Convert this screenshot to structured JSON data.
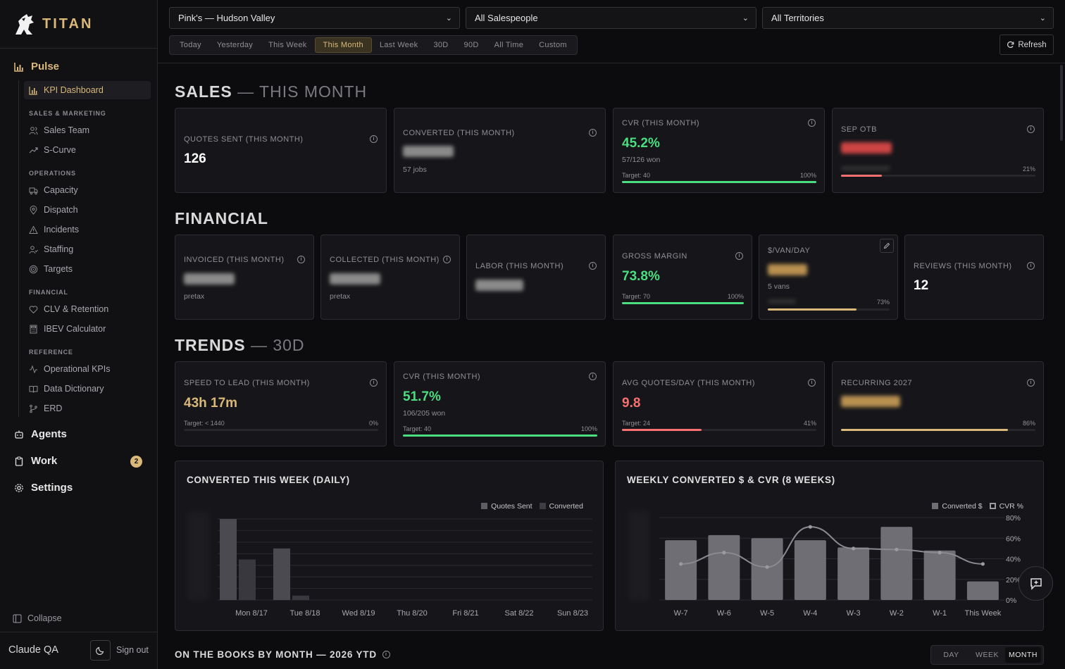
{
  "brand": {
    "name": "TITAN"
  },
  "sidebar": {
    "pulse_label": "Pulse",
    "kpi_dashboard": "KPI Dashboard",
    "groups": {
      "sales_marketing": "SALES & MARKETING",
      "operations": "OPERATIONS",
      "financial": "FINANCIAL",
      "reference": "REFERENCE"
    },
    "items": {
      "sales_team": "Sales Team",
      "s_curve": "S-Curve",
      "capacity": "Capacity",
      "dispatch": "Dispatch",
      "incidents": "Incidents",
      "staffing": "Staffing",
      "targets": "Targets",
      "clv_retention": "CLV & Retention",
      "ibev_calculator": "IBEV Calculator",
      "operational_kpis": "Operational KPIs",
      "data_dictionary": "Data Dictionary",
      "erd": "ERD"
    },
    "agents_label": "Agents",
    "work_label": "Work",
    "work_badge": "2",
    "settings_label": "Settings",
    "collapse_label": "Collapse",
    "user_name": "Claude QA",
    "signout_label": "Sign out"
  },
  "filters": {
    "location": "Pink's — Hudson Valley",
    "salesperson": "All Salespeople",
    "territory": "All Territories"
  },
  "periods": [
    "Today",
    "Yesterday",
    "This Week",
    "This Month",
    "Last Week",
    "30D",
    "90D",
    "All Time",
    "Custom"
  ],
  "active_period": "This Month",
  "refresh_label": "Refresh",
  "sales": {
    "title": "SALES",
    "title_suffix": "— THIS MONTH",
    "quotes_sent": {
      "label": "QUOTES SENT (THIS MONTH)",
      "value": "126"
    },
    "converted": {
      "label": "CONVERTED (THIS MONTH)",
      "sub": "57 jobs"
    },
    "cvr": {
      "label": "CVR (THIS MONTH)",
      "value": "45.2%",
      "sub": "57/126 won",
      "target": "Target: 40",
      "pct": "100%",
      "progress": 1.0
    },
    "sep_otb": {
      "label": "SEP OTB",
      "pct": "21%",
      "progress": 0.21
    }
  },
  "financial": {
    "title": "FINANCIAL",
    "invoiced": {
      "label": "INVOICED (THIS MONTH)",
      "sub": "pretax"
    },
    "collected": {
      "label": "COLLECTED (THIS MONTH)",
      "sub": "pretax"
    },
    "labor": {
      "label": "LABOR (THIS MONTH)"
    },
    "gross_margin": {
      "label": "GROSS MARGIN",
      "value": "73.8%",
      "target": "Target: 70",
      "pct": "100%",
      "progress": 1.0
    },
    "van_day": {
      "label": "$/VAN/DAY",
      "sub": "5 vans",
      "pct": "73%",
      "progress": 0.73
    },
    "reviews": {
      "label": "REVIEWS (THIS MONTH)",
      "value": "12"
    }
  },
  "trends": {
    "title": "TRENDS",
    "title_suffix": "— 30D",
    "speed_to_lead": {
      "label": "SPEED TO LEAD (THIS MONTH)",
      "value": "43h 17m",
      "target": "Target: < 1440",
      "pct": "0%",
      "progress": 0.0
    },
    "cvr": {
      "label": "CVR (THIS MONTH)",
      "value": "51.7%",
      "sub": "106/205 won",
      "target": "Target: 40",
      "pct": "100%",
      "progress": 1.0
    },
    "avg_quotes": {
      "label": "AVG QUOTES/DAY (THIS MONTH)",
      "value": "9.8",
      "target": "Target: 24",
      "pct": "41%",
      "progress": 0.41
    },
    "recurring": {
      "label": "RECURRING 2027",
      "pct": "86%",
      "progress": 0.86
    }
  },
  "chart_data": [
    {
      "type": "bar",
      "title": "CONVERTED THIS WEEK (DAILY)",
      "categories": [
        "Mon 8/17",
        "Tue 8/18",
        "Wed 8/19",
        "Thu 8/20",
        "Fri 8/21",
        "Sat 8/22",
        "Sun 8/23"
      ],
      "series": [
        {
          "name": "Quotes Sent",
          "values": [
            11,
            7,
            0,
            0,
            0,
            0,
            0
          ]
        },
        {
          "name": "Converted",
          "values": [
            5.5,
            0.6,
            0,
            0,
            0,
            0,
            0
          ]
        }
      ],
      "ylim": [
        0,
        11
      ],
      "grid": true,
      "legend": "top-right"
    },
    {
      "type": "bar",
      "title": "WEEKLY CONVERTED $ & CVR (8 WEEKS)",
      "categories": [
        "W-7",
        "W-6",
        "W-5",
        "W-4",
        "W-3",
        "W-2",
        "W-1",
        "This Week"
      ],
      "series": [
        {
          "name": "Converted $",
          "values": [
            58,
            63,
            60,
            58,
            51,
            71,
            48,
            18
          ]
        },
        {
          "name": "CVR %",
          "type": "line",
          "axis": "right",
          "values": [
            35,
            46,
            32,
            71,
            50,
            49,
            46,
            35
          ]
        }
      ],
      "y2_ticks": [
        "0%",
        "20%",
        "40%",
        "60%",
        "80%"
      ],
      "y2lim": [
        0,
        80
      ],
      "ylim": [
        0,
        80
      ],
      "grid": true,
      "legend": "top-right"
    }
  ],
  "books": {
    "title": "ON THE BOOKS BY MONTH — 2026 YTD",
    "toggles": [
      "DAY",
      "WEEK",
      "MONTH"
    ],
    "active": "MONTH"
  },
  "colors": {
    "gold": "#d9b87a",
    "green": "#4ade80",
    "red": "#f87171",
    "bar": "#5e5e64"
  },
  "icons": [
    "bar-chart-icon",
    "users-icon",
    "trend-icon",
    "truck-icon",
    "map-pin-icon",
    "warning-icon",
    "user-check-icon",
    "target-icon",
    "heart-icon",
    "calculator-icon",
    "activity-icon",
    "book-icon",
    "git-branch-icon",
    "robot-icon",
    "clipboard-icon",
    "gear-icon",
    "collapse-icon",
    "moon-icon",
    "refresh-icon",
    "info-icon",
    "pencil-icon",
    "chat-plus-icon"
  ]
}
